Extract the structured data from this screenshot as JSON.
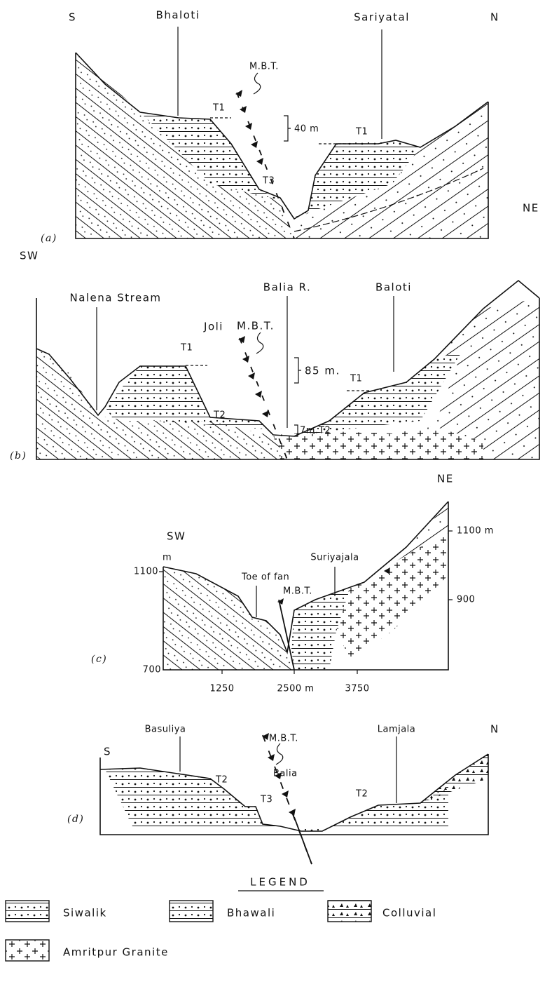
{
  "panels": [
    {
      "label": "(a)",
      "left_end": "S",
      "right_end": "N",
      "places": [
        "Bhaloti",
        "Sariyatal"
      ],
      "fault": "M.B.T.",
      "terraces": [
        "T1",
        "T1",
        "T3"
      ],
      "annotations": [
        "40 m"
      ]
    },
    {
      "label": "(b)",
      "left_end": "SW",
      "right_end": "NE",
      "places": [
        "Nalena Stream",
        "Joli",
        "Balia R.",
        "Baloti"
      ],
      "fault": "M.B.T.",
      "terraces": [
        "T1",
        "T1",
        "T2",
        "T2"
      ],
      "annotations": [
        "85 m.",
        "7m."
      ]
    },
    {
      "label": "(c)",
      "left_end": "SW",
      "right_end": "NE",
      "places": [
        "Toe of fan",
        "Suriyajala"
      ],
      "fault": "M.B.T.",
      "left_axis": [
        "m",
        "1100",
        "700"
      ],
      "right_axis": [
        "1100 m",
        "900"
      ],
      "bottom_axis": [
        "1250",
        "2500 m",
        "3750"
      ]
    },
    {
      "label": "(d)",
      "left_end": "S",
      "right_end": "N",
      "places": [
        "Basuliya",
        "Lamjala",
        "Balia"
      ],
      "fault": "M.B.T.",
      "terraces": [
        "T2",
        "T3",
        "T2"
      ]
    }
  ],
  "legend": {
    "title": "LEGEND",
    "items": [
      "Siwalik",
      "Bhawali",
      "Colluvial",
      "Amritpur Granite"
    ]
  }
}
